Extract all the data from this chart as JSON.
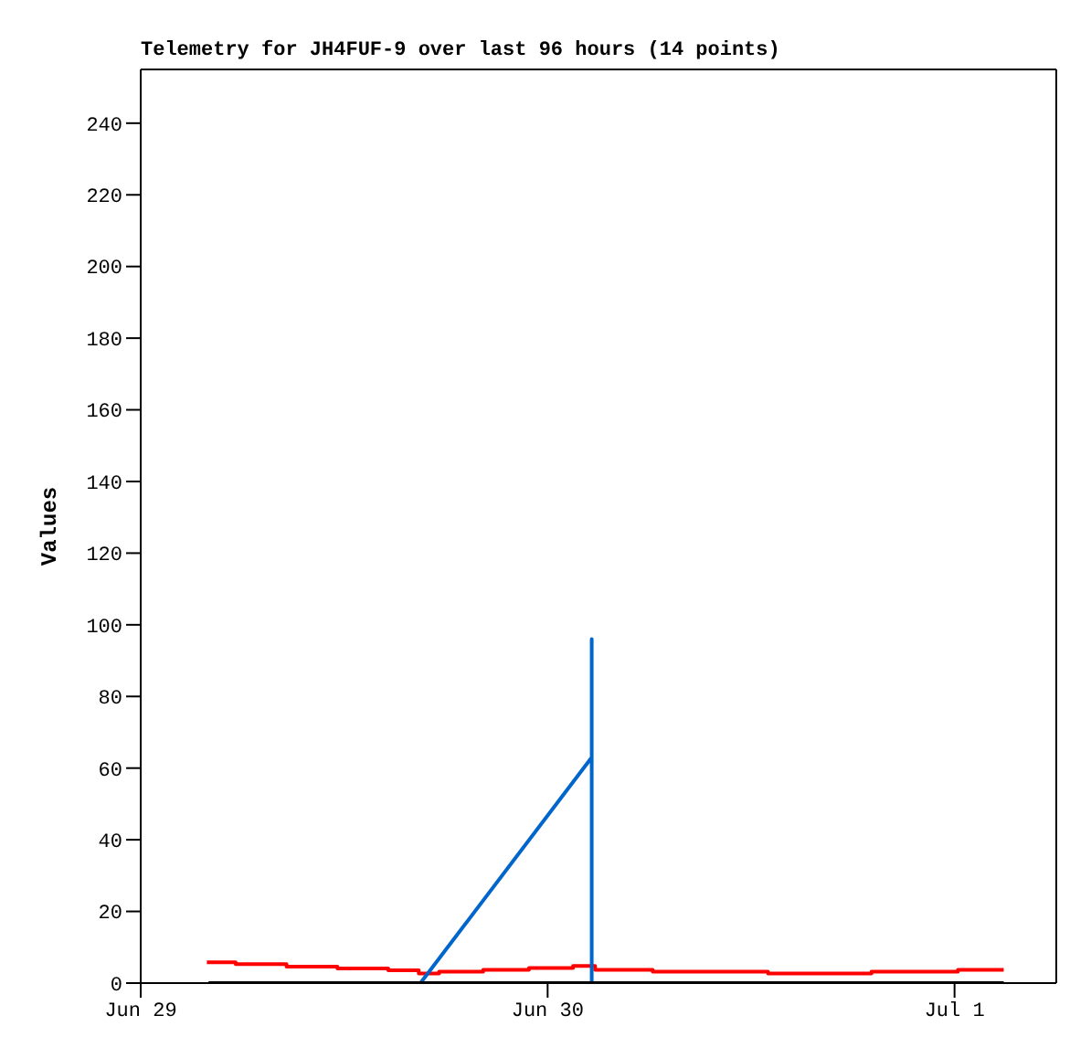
{
  "chart_data": {
    "type": "line",
    "title": "Telemetry for JH4FUF-9 over last 96 hours (14 points)",
    "ylabel": "Values",
    "xlim": [
      "--06-29",
      "--07-01T06:00"
    ],
    "xticks": [
      {
        "value": "--06-29",
        "label": "Jun 29"
      },
      {
        "value": "--06-30",
        "label": "Jun 30"
      },
      {
        "value": "--07-01",
        "label": "Jul 1"
      }
    ],
    "ylim": [
      0,
      255
    ],
    "yticks": [
      0,
      20,
      40,
      60,
      80,
      100,
      120,
      140,
      160,
      180,
      200,
      220,
      240
    ],
    "marker": "none",
    "line_style": "solid",
    "series": [
      {
        "type": "step",
        "color": "#ff0000",
        "x": [
          "--06-29T03:54",
          "--06-29T05:36",
          "--06-29T08:36",
          "--06-29T11:36",
          "--06-29T14:36",
          "--06-29T16:24",
          "--06-29T17:36",
          "--06-29T20:12",
          "--06-29T22:54",
          "--06-30T01:30",
          "--06-30T02:48",
          "--06-30T06:12",
          "--06-30T13:00",
          "--06-30T19:06",
          "--07-01T00:12",
          "--07-01T02:54"
        ],
        "values": [
          5.8,
          5.3,
          4.6,
          4.1,
          3.6,
          2.7,
          3.2,
          3.7,
          4.2,
          4.8,
          3.7,
          3.2,
          2.7,
          3.2,
          3.7,
          3.7
        ]
      },
      {
        "color": "#0066cc",
        "x": [
          "--06-29T16:30",
          "--06-30T02:36",
          "--06-30T02:36",
          "--06-30T02:36"
        ],
        "values": [
          0,
          63,
          96,
          0
        ]
      },
      {
        "color": "#000000",
        "x": [
          "--06-29T04:00",
          "--07-01T02:54"
        ],
        "values": [
          0,
          0
        ]
      }
    ]
  }
}
